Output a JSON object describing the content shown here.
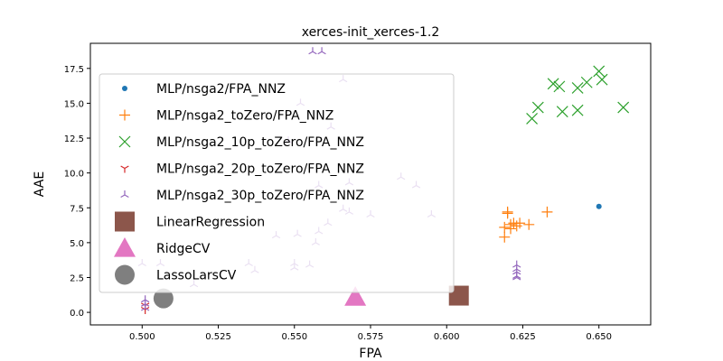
{
  "chart_data": {
    "type": "scatter",
    "title": "xerces-init_xerces-1.2",
    "xlabel": "FPA",
    "ylabel": "AAE",
    "xlim": [
      0.483,
      0.667
    ],
    "ylim": [
      -0.9,
      19.3
    ],
    "xticks": [
      "0.500",
      "0.525",
      "0.550",
      "0.575",
      "0.600",
      "0.625",
      "0.650"
    ],
    "yticks": [
      "0.0",
      "2.5",
      "5.0",
      "7.5",
      "10.0",
      "12.5",
      "15.0",
      "17.5"
    ],
    "grid": false,
    "legend_position": "upper-left",
    "series": [
      {
        "name": "MLP/nsga2/FPA_NNZ",
        "marker": "dot",
        "color": "#1f77b4",
        "points": [
          [
            0.65,
            7.6
          ]
        ]
      },
      {
        "name": "MLP/nsga2_toZero/FPA_NNZ",
        "marker": "plus",
        "color": "#ff7f0e",
        "points": [
          [
            0.619,
            5.4
          ],
          [
            0.619,
            6.1
          ],
          [
            0.62,
            7.2
          ],
          [
            0.62,
            7.1
          ],
          [
            0.621,
            6.3
          ],
          [
            0.621,
            6.0
          ],
          [
            0.622,
            6.4
          ],
          [
            0.623,
            6.2
          ],
          [
            0.624,
            6.4
          ],
          [
            0.627,
            6.3
          ],
          [
            0.633,
            7.2
          ]
        ]
      },
      {
        "name": "MLP/nsga2_10p_toZero/FPA_NNZ",
        "marker": "x",
        "color": "#2ca02c",
        "points": [
          [
            0.628,
            13.9
          ],
          [
            0.63,
            14.7
          ],
          [
            0.635,
            16.4
          ],
          [
            0.637,
            16.2
          ],
          [
            0.638,
            14.4
          ],
          [
            0.643,
            14.5
          ],
          [
            0.643,
            16.1
          ],
          [
            0.646,
            16.5
          ],
          [
            0.65,
            17.3
          ],
          [
            0.651,
            16.7
          ],
          [
            0.658,
            14.7
          ]
        ]
      },
      {
        "name": "MLP/nsga2_20p_toZero/FPA_NNZ",
        "marker": "tri_down",
        "color": "#d62728",
        "points": [
          [
            0.501,
            0.5
          ],
          [
            0.501,
            0.2
          ]
        ]
      },
      {
        "name": "MLP/nsga2_30p_toZero/FPA_NNZ",
        "marker": "tri_up",
        "color": "#9467bd",
        "points": [
          [
            0.501,
            0.9
          ],
          [
            0.501,
            0.6
          ],
          [
            0.501,
            0.3
          ],
          [
            0.623,
            3.4
          ],
          [
            0.623,
            3.1
          ],
          [
            0.623,
            2.9
          ],
          [
            0.623,
            2.6
          ],
          [
            0.623,
            2.5
          ],
          [
            0.556,
            18.7
          ],
          [
            0.559,
            18.7
          ],
          [
            0.5,
            3.5
          ],
          [
            0.506,
            3.5
          ],
          [
            0.517,
            2.0
          ],
          [
            0.535,
            3.5
          ],
          [
            0.537,
            3.0
          ],
          [
            0.55,
            3.5
          ],
          [
            0.55,
            3.2
          ],
          [
            0.555,
            3.4
          ],
          [
            0.544,
            5.5
          ],
          [
            0.551,
            5.6
          ],
          [
            0.557,
            5.0
          ],
          [
            0.558,
            5.8
          ],
          [
            0.561,
            6.4
          ],
          [
            0.566,
            7.4
          ],
          [
            0.568,
            7.2
          ],
          [
            0.575,
            7.0
          ],
          [
            0.595,
            7.0
          ],
          [
            0.566,
            16.7
          ],
          [
            0.552,
            15.0
          ],
          [
            0.548,
            12.3
          ],
          [
            0.562,
            13.3
          ],
          [
            0.558,
            9.1
          ],
          [
            0.568,
            9.3
          ],
          [
            0.59,
            9.1
          ],
          [
            0.585,
            9.7
          ]
        ]
      }
    ],
    "baselines": [
      {
        "name": "LinearRegression",
        "marker": "square",
        "color": "#8c564b",
        "points": [
          [
            0.604,
            1.2
          ]
        ]
      },
      {
        "name": "RidgeCV",
        "marker": "triangle",
        "color": "#e377c2",
        "points": [
          [
            0.57,
            1.1
          ]
        ]
      },
      {
        "name": "LassoLarsCV",
        "marker": "circle",
        "color": "#7f7f7f",
        "points": [
          [
            0.507,
            1.0
          ]
        ]
      }
    ]
  }
}
